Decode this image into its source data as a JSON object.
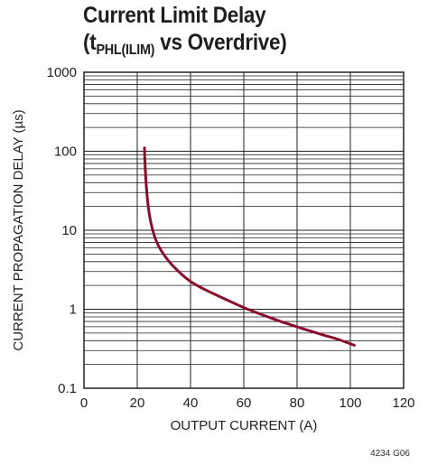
{
  "title": {
    "line1": "Current Limit Delay",
    "line2_prefix": "(t",
    "line2_sub": "PHL(ILIM)",
    "line2_suffix": " vs Overdrive)"
  },
  "figure_id": "4234 G06",
  "colors": {
    "curve": "#8b0d2e",
    "grid": "#222222"
  },
  "chart_data": {
    "type": "line",
    "title": "Current Limit Delay (tPHL(ILIM) vs Overdrive)",
    "xlabel": "OUTPUT CURRENT (A)",
    "ylabel": "CURRENT PROPAGATION DELAY (µs)",
    "xlim": [
      0,
      120
    ],
    "ylim": [
      0.1,
      1000
    ],
    "yscale": "log",
    "x_ticks": [
      0,
      20,
      40,
      60,
      80,
      100,
      120
    ],
    "x_tick_labels": [
      "0",
      "20",
      "40",
      "60",
      "80",
      "100",
      "120"
    ],
    "y_ticks": [
      0.1,
      1,
      10,
      100,
      1000
    ],
    "y_tick_labels": [
      "0.1",
      "1",
      "10",
      "100",
      "1000"
    ],
    "grid": true,
    "series": [
      {
        "x": [
          22.7,
          23.0,
          23.6,
          24.4,
          25.5,
          27.0,
          29.0,
          32.0,
          36.0,
          40.0,
          45.0,
          50.0,
          55.0,
          60.0,
          65.0,
          70.0,
          75.0,
          80.0,
          85.0,
          90.0,
          95.0,
          101.5
        ],
        "y": [
          110,
          60,
          30,
          17,
          11,
          7.5,
          5.5,
          4.0,
          2.9,
          2.25,
          1.8,
          1.5,
          1.25,
          1.05,
          0.9,
          0.78,
          0.68,
          0.6,
          0.53,
          0.47,
          0.42,
          0.35
        ]
      }
    ]
  }
}
